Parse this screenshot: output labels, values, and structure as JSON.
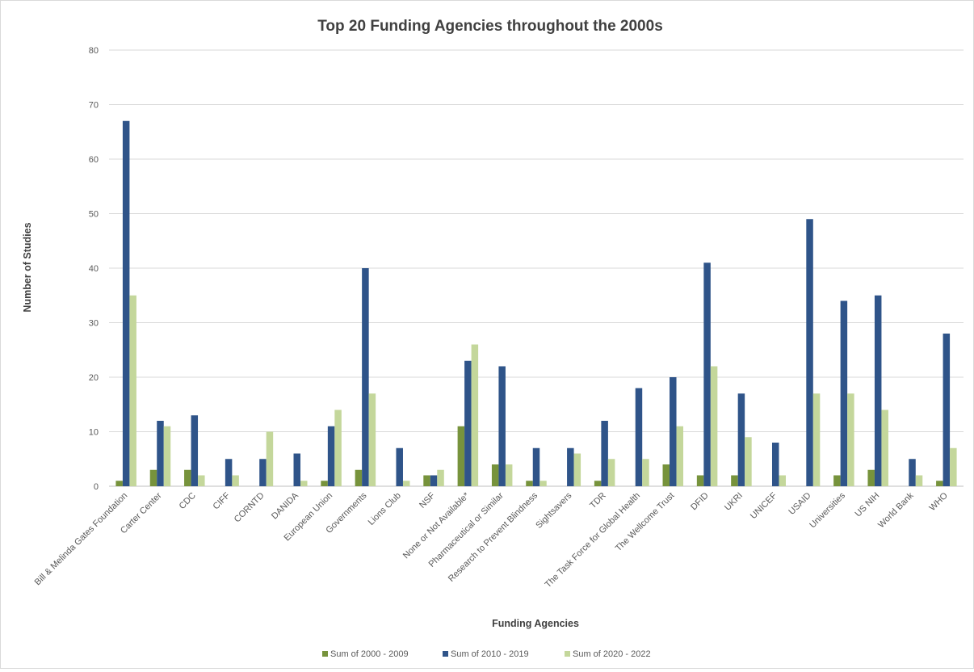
{
  "chart_data": {
    "type": "bar",
    "title": "Top 20 Funding Agencies throughout the 2000s",
    "xlabel": "Funding Agencies",
    "ylabel": "Number of Studies",
    "ylim": [
      0,
      80
    ],
    "yticks": [
      0,
      10,
      20,
      30,
      40,
      50,
      60,
      70,
      80
    ],
    "grid": true,
    "legend_position": "bottom",
    "categories": [
      "Bill & Melinda Gates Foundation",
      "Carter Center",
      "CDC",
      "CIFF",
      "CORNTD",
      "DANIDA",
      "European Union",
      "Governments",
      "Lions Club",
      "NSF",
      "None or Not Available*",
      "Pharmaceutical or Similar",
      "Research to Prevent Blindness",
      "Sightsavers",
      "TDR",
      "The Task Force for Global Health",
      "The Wellcome Trust",
      "DFID",
      "UKRI",
      "UNICEF",
      "USAID",
      "Universities",
      "US NIH",
      "World Bank",
      "WHO"
    ],
    "series": [
      {
        "name": "Sum of 2000 - 2009",
        "color": "#77933c",
        "values": [
          1,
          3,
          3,
          0,
          0,
          0,
          1,
          3,
          0,
          2,
          11,
          4,
          1,
          0,
          1,
          0,
          4,
          2,
          2,
          0,
          0,
          2,
          3,
          0,
          1
        ]
      },
      {
        "name": "Sum of 2010 - 2019",
        "color": "#2f5489",
        "values": [
          67,
          12,
          13,
          5,
          5,
          6,
          11,
          40,
          7,
          2,
          23,
          22,
          7,
          7,
          12,
          18,
          20,
          41,
          17,
          8,
          49,
          34,
          35,
          5,
          28
        ]
      },
      {
        "name": "Sum of 2020 - 2022",
        "color": "#c4d79b",
        "values": [
          35,
          11,
          2,
          2,
          10,
          1,
          14,
          17,
          1,
          3,
          26,
          4,
          1,
          6,
          5,
          5,
          11,
          22,
          9,
          2,
          17,
          17,
          14,
          2,
          7
        ]
      }
    ]
  }
}
